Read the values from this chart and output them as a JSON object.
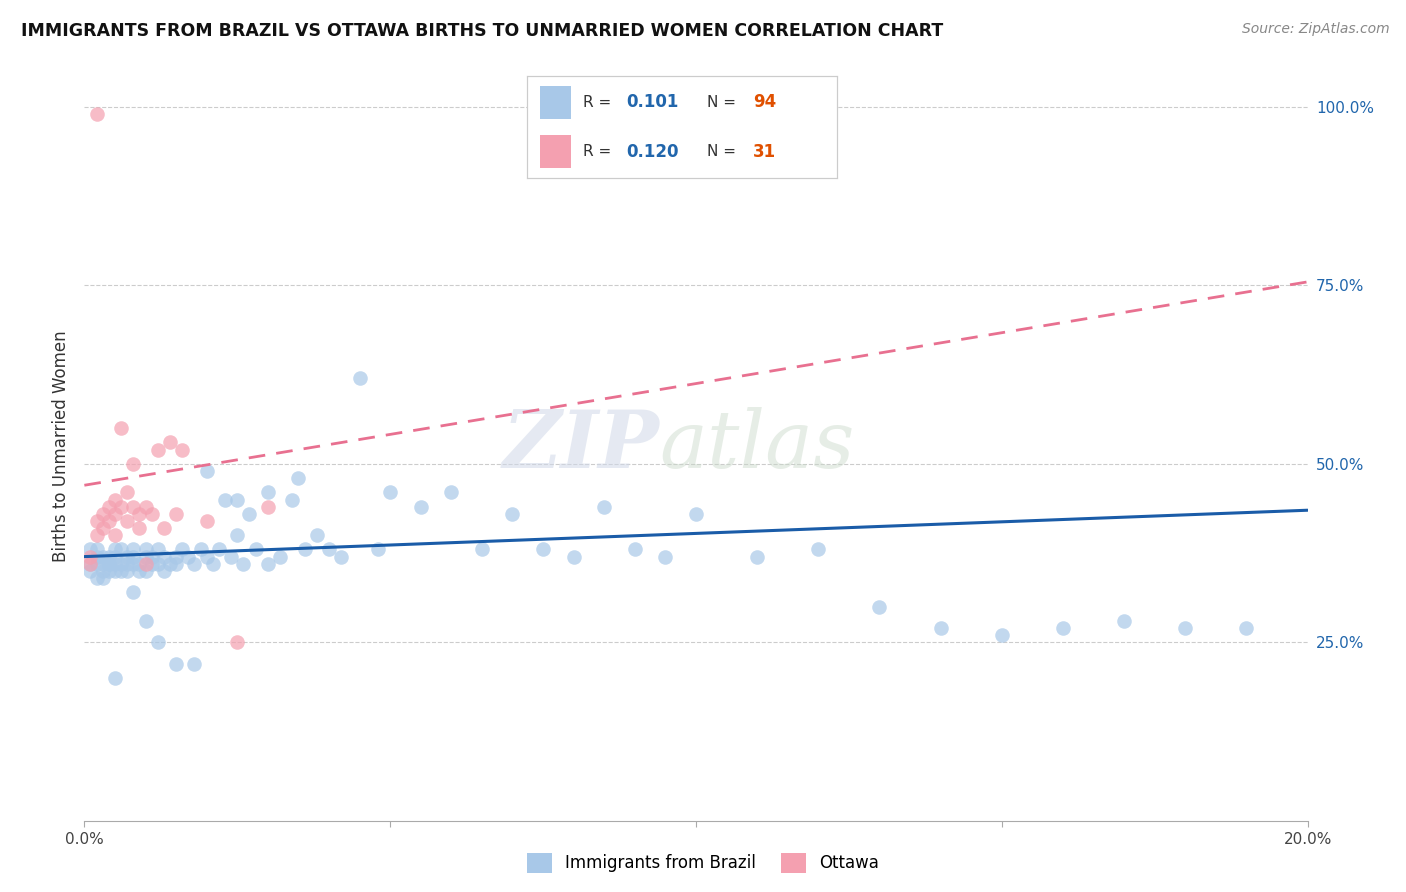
{
  "title": "IMMIGRANTS FROM BRAZIL VS OTTAWA BIRTHS TO UNMARRIED WOMEN CORRELATION CHART",
  "source": "Source: ZipAtlas.com",
  "ylabel": "Births to Unmarried Women",
  "xmin": 0.0,
  "xmax": 0.2,
  "ymin": 0.0,
  "ymax": 1.05,
  "yticks": [
    0.25,
    0.5,
    0.75,
    1.0
  ],
  "ytick_labels": [
    "25.0%",
    "50.0%",
    "75.0%",
    "100.0%"
  ],
  "xticks": [
    0.0,
    0.05,
    0.1,
    0.15,
    0.2
  ],
  "legend_blue_r": "0.101",
  "legend_blue_n": "94",
  "legend_pink_r": "0.120",
  "legend_pink_n": "31",
  "legend_label_blue": "Immigrants from Brazil",
  "legend_label_pink": "Ottawa",
  "blue_dot_color": "#a8c8e8",
  "pink_dot_color": "#f4a0b0",
  "blue_line_color": "#1a5ca8",
  "pink_line_color": "#e87090",
  "watermark_zip": "ZIP",
  "watermark_atlas": "atlas",
  "blue_line_y0": 0.37,
  "blue_line_y1": 0.435,
  "pink_line_y0": 0.47,
  "pink_line_y1": 0.755,
  "blue_scatter_x": [
    0.001,
    0.001,
    0.001,
    0.002,
    0.002,
    0.002,
    0.002,
    0.003,
    0.003,
    0.003,
    0.003,
    0.004,
    0.004,
    0.004,
    0.004,
    0.005,
    0.005,
    0.005,
    0.005,
    0.006,
    0.006,
    0.006,
    0.007,
    0.007,
    0.007,
    0.008,
    0.008,
    0.008,
    0.009,
    0.009,
    0.01,
    0.01,
    0.01,
    0.011,
    0.011,
    0.012,
    0.012,
    0.013,
    0.013,
    0.014,
    0.015,
    0.015,
    0.016,
    0.017,
    0.018,
    0.019,
    0.02,
    0.021,
    0.022,
    0.023,
    0.024,
    0.025,
    0.026,
    0.027,
    0.028,
    0.03,
    0.032,
    0.034,
    0.036,
    0.038,
    0.04,
    0.042,
    0.045,
    0.048,
    0.05,
    0.055,
    0.06,
    0.065,
    0.07,
    0.075,
    0.08,
    0.085,
    0.09,
    0.095,
    0.1,
    0.11,
    0.12,
    0.13,
    0.14,
    0.15,
    0.16,
    0.17,
    0.18,
    0.19,
    0.005,
    0.008,
    0.01,
    0.012,
    0.015,
    0.018,
    0.02,
    0.025,
    0.03,
    0.035
  ],
  "blue_scatter_y": [
    0.36,
    0.35,
    0.38,
    0.36,
    0.37,
    0.34,
    0.38,
    0.35,
    0.36,
    0.37,
    0.34,
    0.36,
    0.35,
    0.37,
    0.36,
    0.36,
    0.38,
    0.35,
    0.37,
    0.36,
    0.35,
    0.38,
    0.36,
    0.37,
    0.35,
    0.36,
    0.38,
    0.37,
    0.35,
    0.36,
    0.37,
    0.35,
    0.38,
    0.36,
    0.37,
    0.36,
    0.38,
    0.37,
    0.35,
    0.36,
    0.37,
    0.36,
    0.38,
    0.37,
    0.36,
    0.38,
    0.37,
    0.36,
    0.38,
    0.45,
    0.37,
    0.4,
    0.36,
    0.43,
    0.38,
    0.36,
    0.37,
    0.45,
    0.38,
    0.4,
    0.38,
    0.37,
    0.62,
    0.38,
    0.46,
    0.44,
    0.46,
    0.38,
    0.43,
    0.38,
    0.37,
    0.44,
    0.38,
    0.37,
    0.43,
    0.37,
    0.38,
    0.3,
    0.27,
    0.26,
    0.27,
    0.28,
    0.27,
    0.27,
    0.2,
    0.32,
    0.28,
    0.25,
    0.22,
    0.22,
    0.49,
    0.45,
    0.46,
    0.48
  ],
  "pink_scatter_x": [
    0.001,
    0.001,
    0.002,
    0.002,
    0.002,
    0.003,
    0.003,
    0.004,
    0.004,
    0.005,
    0.005,
    0.005,
    0.006,
    0.006,
    0.007,
    0.007,
    0.008,
    0.008,
    0.009,
    0.009,
    0.01,
    0.01,
    0.011,
    0.012,
    0.013,
    0.014,
    0.015,
    0.016,
    0.02,
    0.025,
    0.03
  ],
  "pink_scatter_y": [
    0.36,
    0.37,
    0.4,
    0.42,
    0.99,
    0.43,
    0.41,
    0.44,
    0.42,
    0.45,
    0.4,
    0.43,
    0.44,
    0.55,
    0.46,
    0.42,
    0.44,
    0.5,
    0.43,
    0.41,
    0.44,
    0.36,
    0.43,
    0.52,
    0.41,
    0.53,
    0.43,
    0.52,
    0.42,
    0.25,
    0.44
  ]
}
